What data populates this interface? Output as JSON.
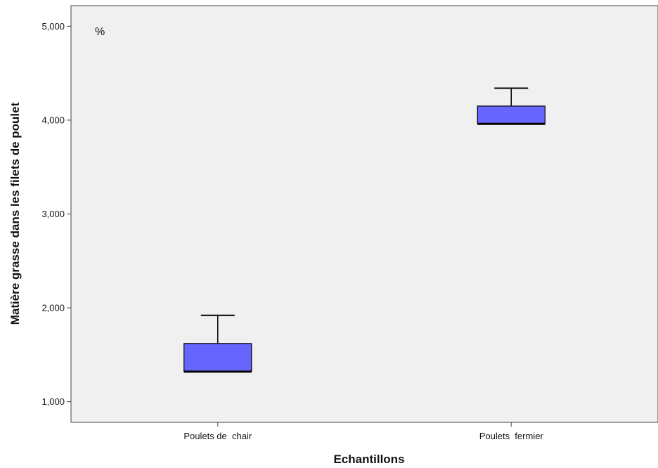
{
  "chart_data": {
    "type": "boxplot",
    "xlabel": "Echantillons",
    "ylabel": "Matière grasse dans les filets de  poulet",
    "unit_annotation": "%",
    "ylim": [
      0.78,
      5.22
    ],
    "yticks": [
      1.0,
      2.0,
      3.0,
      4.0,
      5.0
    ],
    "ytick_labels": [
      "1,000",
      "2,000",
      "3,000",
      "4,000",
      "5,000"
    ],
    "categories": [
      "Poulets de  chair",
      "Poulets  fermier"
    ],
    "boxes": [
      {
        "category": "Poulets de  chair",
        "min": 1.32,
        "q1": 1.32,
        "median": 1.32,
        "q3": 1.62,
        "max": 1.92
      },
      {
        "category": "Poulets  fermier",
        "min": 3.96,
        "q1": 3.96,
        "median": 3.96,
        "q3": 4.15,
        "max": 4.34
      }
    ],
    "grid": false,
    "legend": "none",
    "colors": {
      "box_fill": "#6666ff",
      "plot_background": "#f0f0f0",
      "line": "#000000"
    }
  }
}
